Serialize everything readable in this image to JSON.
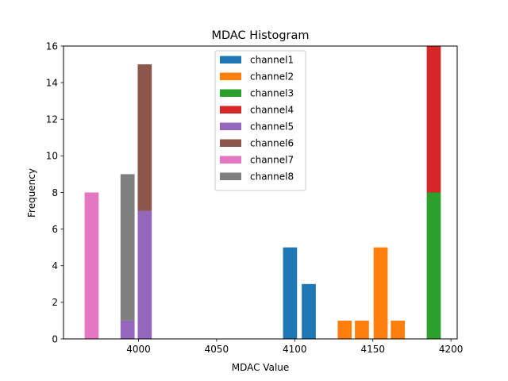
{
  "chart_data": {
    "type": "bar",
    "stacked": true,
    "title": "MDAC Histogram",
    "xlabel": "MDAC Value",
    "ylabel": "Frequency",
    "xlim": [
      3952,
      4204
    ],
    "ylim": [
      0,
      16
    ],
    "xticks": [
      4000,
      4050,
      4100,
      4150,
      4200
    ],
    "yticks": [
      0,
      2,
      4,
      6,
      8,
      10,
      12,
      14,
      16
    ],
    "bar_width": 9,
    "grid": false,
    "legend_position": "top-center",
    "series": [
      {
        "name": "channel1",
        "color": "#1f77b4",
        "bars": [
          {
            "x": 4097,
            "value": 5
          },
          {
            "x": 4109,
            "value": 3
          }
        ]
      },
      {
        "name": "channel2",
        "color": "#ff7f0e",
        "bars": [
          {
            "x": 4132,
            "value": 1
          },
          {
            "x": 4143,
            "value": 1
          },
          {
            "x": 4155,
            "value": 5
          },
          {
            "x": 4166,
            "value": 1
          }
        ]
      },
      {
        "name": "channel3",
        "color": "#2ca02c",
        "bars": [
          {
            "x": 4189,
            "value": 8
          }
        ]
      },
      {
        "name": "channel4",
        "color": "#d62728",
        "bars": [
          {
            "x": 4189,
            "value": 8
          }
        ]
      },
      {
        "name": "channel5",
        "color": "#9467bd",
        "bars": [
          {
            "x": 3993,
            "value": 1
          },
          {
            "x": 4004,
            "value": 7
          }
        ]
      },
      {
        "name": "channel6",
        "color": "#8c564b",
        "bars": [
          {
            "x": 4004,
            "value": 8
          }
        ]
      },
      {
        "name": "channel7",
        "color": "#e377c2",
        "bars": [
          {
            "x": 3970,
            "value": 8
          }
        ]
      },
      {
        "name": "channel8",
        "color": "#7f7f7f",
        "bars": [
          {
            "x": 3993,
            "value": 8
          }
        ]
      }
    ]
  }
}
